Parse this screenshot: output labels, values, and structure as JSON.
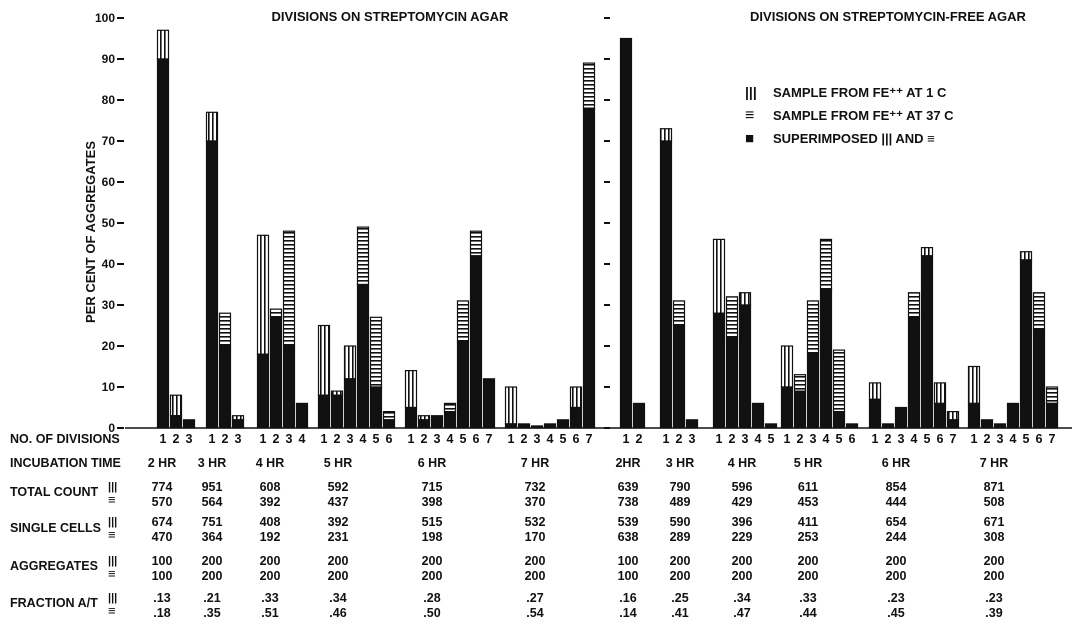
{
  "chart_data": {
    "type": "bar",
    "ylabel": "PER CENT OF AGGREGATES",
    "ylim": [
      0,
      100
    ],
    "yticks": [
      "0",
      "10",
      "20",
      "30",
      "40",
      "50",
      "60",
      "70",
      "80",
      "90",
      "100"
    ],
    "colors": {
      "ink": "#111111",
      "background": "#ffffff"
    },
    "legend": {
      "position": "top-right",
      "items": [
        {
          "symbol": "|||",
          "pattern": "vertical",
          "label": "SAMPLE FROM FE⁺⁺ AT 1 C"
        },
        {
          "symbol": "≡",
          "pattern": "horizontal",
          "label": "SAMPLE FROM FE⁺⁺ AT 37 C"
        },
        {
          "symbol": "■",
          "pattern": "solid",
          "label": "SUPERIMPOSED ||| AND ≡"
        }
      ]
    },
    "row_labels": {
      "divisions": "NO. OF DIVISIONS",
      "incubation": "INCUBATION TIME",
      "total": "TOTAL COUNT",
      "single": "SINGLE CELLS",
      "aggregates": "AGGREGATES",
      "fraction": "FRACTION A/T"
    },
    "panels": [
      {
        "title": "DIVISIONS ON STREPTOMYCIN AGAR",
        "groups": [
          {
            "time": "2 HR",
            "divisions": [
              "1",
              "2",
              "3"
            ],
            "sample_1C": [
              97,
              8,
              2
            ],
            "sample_37C": [
              90,
              3,
              2
            ],
            "total_count": [
              "774",
              "570"
            ],
            "single_cells": [
              "674",
              "470"
            ],
            "aggregates": [
              "100",
              "100"
            ],
            "fraction": [
              ".13",
              ".18"
            ]
          },
          {
            "time": "3 HR",
            "divisions": [
              "1",
              "2",
              "3"
            ],
            "sample_1C": [
              77,
              20,
              3
            ],
            "sample_37C": [
              70,
              28,
              2
            ],
            "total_count": [
              "951",
              "564"
            ],
            "single_cells": [
              "751",
              "364"
            ],
            "aggregates": [
              "200",
              "200"
            ],
            "fraction": [
              ".21",
              ".35"
            ]
          },
          {
            "time": "4 HR",
            "divisions": [
              "1",
              "2",
              "3",
              "4"
            ],
            "sample_1C": [
              47,
              27,
              20,
              6
            ],
            "sample_37C": [
              18,
              29,
              48,
              6
            ],
            "total_count": [
              "608",
              "392"
            ],
            "single_cells": [
              "408",
              "192"
            ],
            "aggregates": [
              "200",
              "200"
            ],
            "fraction": [
              ".33",
              ".51"
            ]
          },
          {
            "time": "5 HR",
            "divisions": [
              "1",
              "2",
              "3",
              "4",
              "5",
              "6"
            ],
            "sample_1C": [
              25,
              9,
              20,
              35,
              10,
              2
            ],
            "sample_37C": [
              8,
              8,
              12,
              49,
              27,
              4
            ],
            "total_count": [
              "592",
              "437"
            ],
            "single_cells": [
              "392",
              "231"
            ],
            "aggregates": [
              "200",
              "200"
            ],
            "fraction": [
              ".34",
              ".46"
            ]
          },
          {
            "time": "6 HR",
            "divisions": [
              "1",
              "2",
              "3",
              "4",
              "5",
              "6",
              "7"
            ],
            "sample_1C": [
              14,
              3,
              3,
              4,
              21,
              42,
              12
            ],
            "sample_37C": [
              5,
              2,
              3,
              6,
              31,
              48,
              12
            ],
            "total_count": [
              "715",
              "398"
            ],
            "single_cells": [
              "515",
              "198"
            ],
            "aggregates": [
              "200",
              "200"
            ],
            "fraction": [
              ".28",
              ".50"
            ]
          },
          {
            "time": "7 HR",
            "divisions": [
              "1",
              "2",
              "3",
              "4",
              "5",
              "6",
              "7"
            ],
            "sample_1C": [
              10,
              1,
              0.5,
              1,
              2,
              10,
              78
            ],
            "sample_37C": [
              1,
              1,
              0.5,
              1,
              2,
              5,
              89
            ],
            "total_count": [
              "732",
              "370"
            ],
            "single_cells": [
              "532",
              "170"
            ],
            "aggregates": [
              "200",
              "200"
            ],
            "fraction": [
              ".27",
              ".54"
            ]
          }
        ]
      },
      {
        "title": "DIVISIONS ON STREPTOMYCIN-FREE AGAR",
        "groups": [
          {
            "time": "2HR",
            "divisions": [
              "1",
              "2"
            ],
            "sample_1C": [
              95,
              6
            ],
            "sample_37C": [
              95,
              6
            ],
            "total_count": [
              "639",
              "738"
            ],
            "single_cells": [
              "539",
              "638"
            ],
            "aggregates": [
              "100",
              "100"
            ],
            "fraction": [
              ".16",
              ".14"
            ]
          },
          {
            "time": "3 HR",
            "divisions": [
              "1",
              "2",
              "3"
            ],
            "sample_1C": [
              73,
              25,
              2
            ],
            "sample_37C": [
              70,
              31,
              2
            ],
            "total_count": [
              "790",
              "489"
            ],
            "single_cells": [
              "590",
              "289"
            ],
            "aggregates": [
              "200",
              "200"
            ],
            "fraction": [
              ".25",
              ".41"
            ]
          },
          {
            "time": "4 HR",
            "divisions": [
              "1",
              "2",
              "3",
              "4",
              "5"
            ],
            "sample_1C": [
              46,
              22,
              33,
              6,
              1
            ],
            "sample_37C": [
              28,
              32,
              30,
              6,
              1
            ],
            "total_count": [
              "596",
              "429"
            ],
            "single_cells": [
              "396",
              "229"
            ],
            "aggregates": [
              "200",
              "200"
            ],
            "fraction": [
              ".34",
              ".47"
            ]
          },
          {
            "time": "5 HR",
            "divisions": [
              "1",
              "2",
              "3",
              "4",
              "5",
              "6"
            ],
            "sample_1C": [
              20,
              9,
              18,
              34,
              4,
              1
            ],
            "sample_37C": [
              10,
              13,
              31,
              46,
              19,
              1
            ],
            "total_count": [
              "611",
              "453"
            ],
            "single_cells": [
              "411",
              "253"
            ],
            "aggregates": [
              "200",
              "200"
            ],
            "fraction": [
              ".33",
              ".44"
            ]
          },
          {
            "time": "6 HR",
            "divisions": [
              "1",
              "2",
              "3",
              "4",
              "5",
              "6",
              "7"
            ],
            "sample_1C": [
              11,
              1,
              5,
              27,
              44,
              11,
              4
            ],
            "sample_37C": [
              7,
              1,
              5,
              33,
              42,
              6,
              2
            ],
            "total_count": [
              "854",
              "444"
            ],
            "single_cells": [
              "654",
              "244"
            ],
            "aggregates": [
              "200",
              "200"
            ],
            "fraction": [
              ".23",
              ".45"
            ]
          },
          {
            "time": "7 HR",
            "divisions": [
              "1",
              "2",
              "3",
              "4",
              "5",
              "6",
              "7"
            ],
            "sample_1C": [
              15,
              2,
              1,
              6,
              43,
              24,
              6
            ],
            "sample_37C": [
              6,
              2,
              1,
              6,
              41,
              33,
              10
            ],
            "total_count": [
              "871",
              "508"
            ],
            "single_cells": [
              "671",
              "308"
            ],
            "aggregates": [
              "200",
              "200"
            ],
            "fraction": [
              ".23",
              ".39"
            ]
          }
        ]
      }
    ]
  }
}
